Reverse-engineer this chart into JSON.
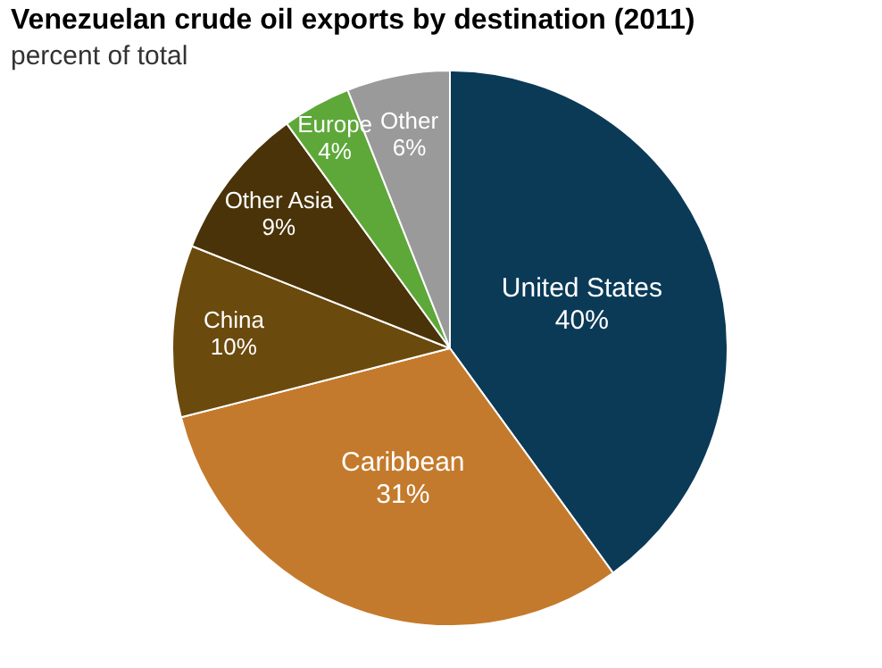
{
  "chart_data": {
    "type": "pie",
    "title": "Venezuelan crude oil exports by destination (2011)",
    "subtitle": "percent of total",
    "categories": [
      "United States",
      "Caribbean",
      "China",
      "Other Asia",
      "Europe",
      "Other"
    ],
    "values": [
      40,
      31,
      10,
      9,
      4,
      6
    ],
    "colors": [
      "#0b3a57",
      "#c47a2c",
      "#6b4a0e",
      "#4a3308",
      "#5ea83a",
      "#9a9a9a"
    ],
    "value_labels": [
      "40%",
      "31%",
      "10%",
      "9%",
      "4%",
      "6%"
    ],
    "legend": false
  }
}
